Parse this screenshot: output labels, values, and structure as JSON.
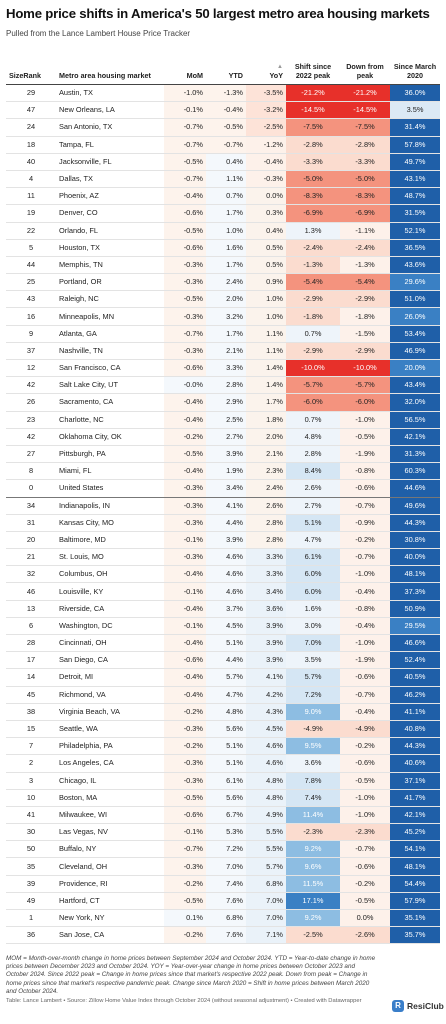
{
  "title": "Home price shifts in America's 50 largest metro area housing markets",
  "subtitle": "Pulled from the Lance Lambert House Price Tracker",
  "headers": {
    "rank": "SizeRank",
    "metro": "Metro area housing market",
    "mom": "MoM",
    "ytd": "YTD",
    "yoy": "YoY",
    "yoy_sort_icon": "▲",
    "shift": "Shift since 2022 peak",
    "down": "Down from peak",
    "since": "Since March 2020"
  },
  "colors": {
    "neg_strong": "#e7302a",
    "neg_mid": "#f4937e",
    "neg_light": "#fbdccf",
    "pos_light": "#d5e6f4",
    "pos_mid": "#8dbde2",
    "pos_strong": "#3a80c4",
    "pos_dark": "#1f5fa8"
  },
  "rows": [
    {
      "rank": "29",
      "metro": "Austin, TX",
      "mom": "-1.0%",
      "ytd": "-1.3%",
      "yoy": "-3.5%",
      "shift": "-21.2%",
      "down": "-21.2%",
      "since": "36.0%"
    },
    {
      "rank": "47",
      "metro": "New Orleans, LA",
      "mom": "-0.1%",
      "ytd": "-0.4%",
      "yoy": "-3.2%",
      "shift": "-14.5%",
      "down": "-14.5%",
      "since": "3.5%"
    },
    {
      "rank": "24",
      "metro": "San Antonio, TX",
      "mom": "-0.7%",
      "ytd": "-0.5%",
      "yoy": "-2.5%",
      "shift": "-7.5%",
      "down": "-7.5%",
      "since": "31.4%"
    },
    {
      "rank": "18",
      "metro": "Tampa, FL",
      "mom": "-0.7%",
      "ytd": "-0.7%",
      "yoy": "-1.2%",
      "shift": "-2.8%",
      "down": "-2.8%",
      "since": "57.8%"
    },
    {
      "rank": "40",
      "metro": "Jacksonville, FL",
      "mom": "-0.5%",
      "ytd": "0.4%",
      "yoy": "-0.4%",
      "shift": "-3.3%",
      "down": "-3.3%",
      "since": "49.7%"
    },
    {
      "rank": "4",
      "metro": "Dallas, TX",
      "mom": "-0.7%",
      "ytd": "1.1%",
      "yoy": "-0.3%",
      "shift": "-5.0%",
      "down": "-5.0%",
      "since": "43.1%"
    },
    {
      "rank": "11",
      "metro": "Phoenix, AZ",
      "mom": "-0.4%",
      "ytd": "0.7%",
      "yoy": "0.0%",
      "shift": "-8.3%",
      "down": "-8.3%",
      "since": "48.7%"
    },
    {
      "rank": "19",
      "metro": "Denver, CO",
      "mom": "-0.6%",
      "ytd": "1.7%",
      "yoy": "0.3%",
      "shift": "-6.9%",
      "down": "-6.9%",
      "since": "31.5%"
    },
    {
      "rank": "22",
      "metro": "Orlando, FL",
      "mom": "-0.5%",
      "ytd": "1.0%",
      "yoy": "0.4%",
      "shift": "1.3%",
      "down": "-1.1%",
      "since": "52.1%"
    },
    {
      "rank": "5",
      "metro": "Houston, TX",
      "mom": "-0.6%",
      "ytd": "1.6%",
      "yoy": "0.5%",
      "shift": "-2.4%",
      "down": "-2.4%",
      "since": "36.5%"
    },
    {
      "rank": "44",
      "metro": "Memphis, TN",
      "mom": "-0.3%",
      "ytd": "1.7%",
      "yoy": "0.5%",
      "shift": "-1.3%",
      "down": "-1.3%",
      "since": "43.6%"
    },
    {
      "rank": "25",
      "metro": "Portland, OR",
      "mom": "-0.3%",
      "ytd": "2.4%",
      "yoy": "0.9%",
      "shift": "-5.4%",
      "down": "-5.4%",
      "since": "29.6%"
    },
    {
      "rank": "43",
      "metro": "Raleigh, NC",
      "mom": "-0.5%",
      "ytd": "2.0%",
      "yoy": "1.0%",
      "shift": "-2.9%",
      "down": "-2.9%",
      "since": "51.0%"
    },
    {
      "rank": "16",
      "metro": "Minneapolis, MN",
      "mom": "-0.3%",
      "ytd": "3.2%",
      "yoy": "1.0%",
      "shift": "-1.8%",
      "down": "-1.8%",
      "since": "26.0%"
    },
    {
      "rank": "9",
      "metro": "Atlanta, GA",
      "mom": "-0.7%",
      "ytd": "1.7%",
      "yoy": "1.1%",
      "shift": "0.7%",
      "down": "-1.5%",
      "since": "53.4%"
    },
    {
      "rank": "37",
      "metro": "Nashville, TN",
      "mom": "-0.3%",
      "ytd": "2.1%",
      "yoy": "1.1%",
      "shift": "-2.9%",
      "down": "-2.9%",
      "since": "46.9%"
    },
    {
      "rank": "12",
      "metro": "San Francisco, CA",
      "mom": "-0.6%",
      "ytd": "3.3%",
      "yoy": "1.4%",
      "shift": "-10.0%",
      "down": "-10.0%",
      "since": "20.0%"
    },
    {
      "rank": "42",
      "metro": "Salt Lake City, UT",
      "mom": "-0.0%",
      "ytd": "2.8%",
      "yoy": "1.4%",
      "shift": "-5.7%",
      "down": "-5.7%",
      "since": "43.4%"
    },
    {
      "rank": "26",
      "metro": "Sacramento, CA",
      "mom": "-0.4%",
      "ytd": "2.9%",
      "yoy": "1.7%",
      "shift": "-6.0%",
      "down": "-6.0%",
      "since": "32.0%"
    },
    {
      "rank": "23",
      "metro": "Charlotte, NC",
      "mom": "-0.4%",
      "ytd": "2.5%",
      "yoy": "1.8%",
      "shift": "0.7%",
      "down": "-1.0%",
      "since": "56.5%"
    },
    {
      "rank": "42",
      "metro": "Oklahoma City, OK",
      "mom": "-0.2%",
      "ytd": "2.7%",
      "yoy": "2.0%",
      "shift": "4.8%",
      "down": "-0.5%",
      "since": "42.1%"
    },
    {
      "rank": "27",
      "metro": "Pittsburgh, PA",
      "mom": "-0.5%",
      "ytd": "3.9%",
      "yoy": "2.1%",
      "shift": "2.8%",
      "down": "-1.9%",
      "since": "31.3%"
    },
    {
      "rank": "8",
      "metro": "Miami, FL",
      "mom": "-0.4%",
      "ytd": "1.9%",
      "yoy": "2.3%",
      "shift": "8.4%",
      "down": "-0.8%",
      "since": "60.3%"
    },
    {
      "rank": "0",
      "metro": "United States",
      "mom": "-0.3%",
      "ytd": "3.4%",
      "yoy": "2.4%",
      "shift": "2.6%",
      "down": "-0.6%",
      "since": "44.6%",
      "us": true
    },
    {
      "rank": "34",
      "metro": "Indianapolis, IN",
      "mom": "-0.3%",
      "ytd": "4.1%",
      "yoy": "2.6%",
      "shift": "2.7%",
      "down": "-0.7%",
      "since": "49.6%"
    },
    {
      "rank": "31",
      "metro": "Kansas City, MO",
      "mom": "-0.3%",
      "ytd": "4.4%",
      "yoy": "2.8%",
      "shift": "5.1%",
      "down": "-0.9%",
      "since": "44.3%"
    },
    {
      "rank": "20",
      "metro": "Baltimore, MD",
      "mom": "-0.1%",
      "ytd": "3.9%",
      "yoy": "2.8%",
      "shift": "4.7%",
      "down": "-0.2%",
      "since": "30.8%"
    },
    {
      "rank": "21",
      "metro": "St. Louis, MO",
      "mom": "-0.3%",
      "ytd": "4.6%",
      "yoy": "3.3%",
      "shift": "6.1%",
      "down": "-0.7%",
      "since": "40.0%"
    },
    {
      "rank": "32",
      "metro": "Columbus, OH",
      "mom": "-0.4%",
      "ytd": "4.6%",
      "yoy": "3.3%",
      "shift": "6.0%",
      "down": "-1.0%",
      "since": "48.1%"
    },
    {
      "rank": "46",
      "metro": "Louisville, KY",
      "mom": "-0.1%",
      "ytd": "4.6%",
      "yoy": "3.4%",
      "shift": "6.0%",
      "down": "-0.4%",
      "since": "37.3%"
    },
    {
      "rank": "13",
      "metro": "Riverside, CA",
      "mom": "-0.4%",
      "ytd": "3.7%",
      "yoy": "3.6%",
      "shift": "1.6%",
      "down": "-0.8%",
      "since": "50.9%"
    },
    {
      "rank": "6",
      "metro": "Washington, DC",
      "mom": "-0.1%",
      "ytd": "4.5%",
      "yoy": "3.9%",
      "shift": "3.0%",
      "down": "-0.4%",
      "since": "29.5%"
    },
    {
      "rank": "28",
      "metro": "Cincinnati, OH",
      "mom": "-0.4%",
      "ytd": "5.1%",
      "yoy": "3.9%",
      "shift": "7.0%",
      "down": "-1.0%",
      "since": "46.6%"
    },
    {
      "rank": "17",
      "metro": "San Diego, CA",
      "mom": "-0.6%",
      "ytd": "4.4%",
      "yoy": "3.9%",
      "shift": "3.5%",
      "down": "-1.9%",
      "since": "52.4%"
    },
    {
      "rank": "14",
      "metro": "Detroit, MI",
      "mom": "-0.4%",
      "ytd": "5.7%",
      "yoy": "4.1%",
      "shift": "5.7%",
      "down": "-0.6%",
      "since": "40.5%"
    },
    {
      "rank": "45",
      "metro": "Richmond, VA",
      "mom": "-0.4%",
      "ytd": "4.7%",
      "yoy": "4.2%",
      "shift": "7.2%",
      "down": "-0.7%",
      "since": "46.2%"
    },
    {
      "rank": "38",
      "metro": "Virginia Beach, VA",
      "mom": "-0.2%",
      "ytd": "4.8%",
      "yoy": "4.3%",
      "shift": "9.0%",
      "down": "-0.4%",
      "since": "41.1%"
    },
    {
      "rank": "15",
      "metro": "Seattle, WA",
      "mom": "-0.3%",
      "ytd": "5.6%",
      "yoy": "4.5%",
      "shift": "-4.9%",
      "down": "-4.9%",
      "since": "40.8%"
    },
    {
      "rank": "7",
      "metro": "Philadelphia, PA",
      "mom": "-0.2%",
      "ytd": "5.1%",
      "yoy": "4.6%",
      "shift": "9.5%",
      "down": "-0.2%",
      "since": "44.3%"
    },
    {
      "rank": "2",
      "metro": "Los Angeles, CA",
      "mom": "-0.3%",
      "ytd": "5.1%",
      "yoy": "4.6%",
      "shift": "3.6%",
      "down": "-0.6%",
      "since": "40.6%"
    },
    {
      "rank": "3",
      "metro": "Chicago, IL",
      "mom": "-0.3%",
      "ytd": "6.1%",
      "yoy": "4.8%",
      "shift": "7.8%",
      "down": "-0.5%",
      "since": "37.1%"
    },
    {
      "rank": "10",
      "metro": "Boston, MA",
      "mom": "-0.5%",
      "ytd": "5.6%",
      "yoy": "4.8%",
      "shift": "7.4%",
      "down": "-1.0%",
      "since": "41.7%"
    },
    {
      "rank": "41",
      "metro": "Milwaukee, WI",
      "mom": "-0.6%",
      "ytd": "6.7%",
      "yoy": "4.9%",
      "shift": "11.4%",
      "down": "-1.0%",
      "since": "42.1%"
    },
    {
      "rank": "30",
      "metro": "Las Vegas, NV",
      "mom": "-0.1%",
      "ytd": "5.3%",
      "yoy": "5.5%",
      "shift": "-2.3%",
      "down": "-2.3%",
      "since": "45.2%"
    },
    {
      "rank": "50",
      "metro": "Buffalo, NY",
      "mom": "-0.7%",
      "ytd": "7.2%",
      "yoy": "5.5%",
      "shift": "9.2%",
      "down": "-0.7%",
      "since": "54.1%"
    },
    {
      "rank": "35",
      "metro": "Cleveland, OH",
      "mom": "-0.3%",
      "ytd": "7.0%",
      "yoy": "5.7%",
      "shift": "9.6%",
      "down": "-0.6%",
      "since": "48.1%"
    },
    {
      "rank": "39",
      "metro": "Providence, RI",
      "mom": "-0.2%",
      "ytd": "7.4%",
      "yoy": "6.8%",
      "shift": "11.5%",
      "down": "-0.2%",
      "since": "54.4%"
    },
    {
      "rank": "49",
      "metro": "Hartford, CT",
      "mom": "-0.5%",
      "ytd": "7.6%",
      "yoy": "7.0%",
      "shift": "17.1%",
      "down": "-0.5%",
      "since": "57.9%"
    },
    {
      "rank": "1",
      "metro": "New York, NY",
      "mom": "0.1%",
      "ytd": "6.8%",
      "yoy": "7.0%",
      "shift": "9.2%",
      "down": "0.0%",
      "since": "35.1%"
    },
    {
      "rank": "36",
      "metro": "San Jose, CA",
      "mom": "-0.2%",
      "ytd": "7.6%",
      "yoy": "7.1%",
      "shift": "-2.5%",
      "down": "-2.6%",
      "since": "35.7%"
    }
  ],
  "footnote": "MOM = Month-over-month change in home prices between September 2024 and October 2024. YTD = Year-to-date change in home prices between December 2023 and October 2024. YOY = Year-over-year change in home prices between October 2023 and October 2024. Since 2022 peak = Change in home prices since that market's respective 2022 peak. Down from peak = Change in home prices since that market's respective pandemic peak. Change since March 2020 = Shift in home prices between March 2020 and October 2024.",
  "source": "Table: Lance Lambert • Source: Zillow Home Value Index through October 2024 (without seasonal adjustment) • Created with Datawrapper",
  "logo_text": "ResiClub",
  "logo_icon": "resiclub-logo-icon"
}
